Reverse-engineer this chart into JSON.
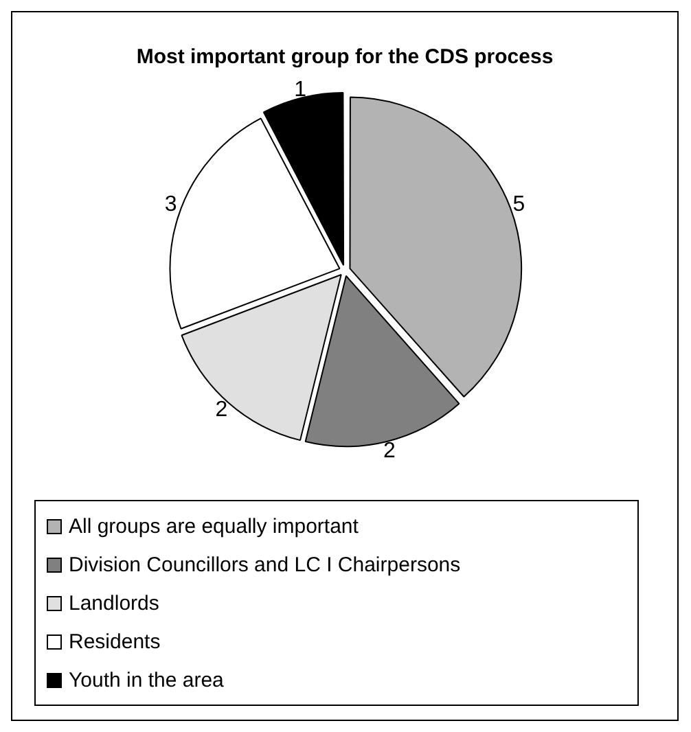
{
  "chart_data": {
    "type": "pie",
    "title": "Most important group for the CDS process",
    "categories": [
      "All groups are equally important",
      "Division Councillors and LC I Chairpersons",
      "Landlords",
      "Residents",
      "Youth in the area"
    ],
    "values": [
      5,
      2,
      2,
      3,
      1
    ],
    "colors": [
      "#b3b3b3",
      "#808080",
      "#e0e0e0",
      "#ffffff",
      "#000000"
    ],
    "data_labels": true,
    "legend": "bottom"
  }
}
